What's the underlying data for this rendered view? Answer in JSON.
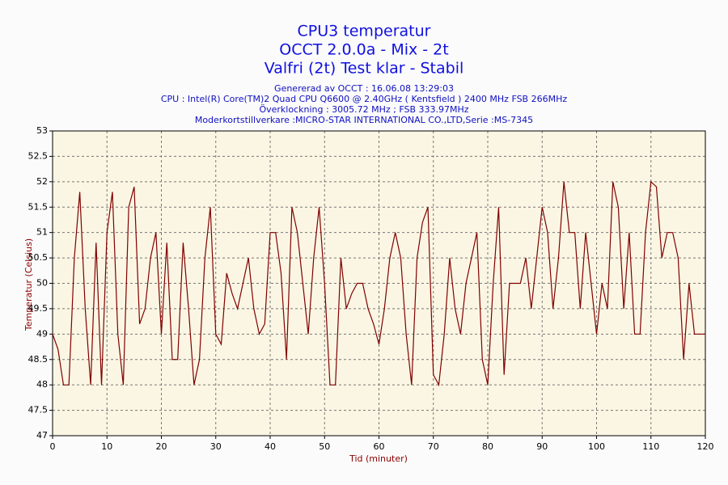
{
  "chart_data": {
    "type": "line",
    "title_lines": [
      "CPU3 temperatur",
      "OCCT 2.0.0a - Mix - 2t",
      "Valfri (2t) Test klar - Stabil"
    ],
    "info_lines": [
      "Genererad av OCCT : 16.06.08 13:29:03",
      "CPU : Intel(R) Core(TM)2 Quad CPU Q6600 @ 2.40GHz ( Kentsfield ) 2400 MHz FSB 266MHz",
      "Överklockning : 3005.72 MHz ; FSB 333.97MHz",
      "Moderkortstillverkare :MICRO-STAR INTERNATIONAL CO.,LTD,Serie :MS-7345"
    ],
    "xlabel": "Tid (minuter)",
    "ylabel": "Temperatur (Celsius)",
    "x": [
      0,
      1,
      2,
      3,
      4,
      5,
      6,
      7,
      8,
      9,
      10,
      11,
      12,
      13,
      14,
      15,
      16,
      17,
      18,
      19,
      20,
      21,
      22,
      23,
      24,
      25,
      26,
      27,
      28,
      29,
      30,
      31,
      32,
      33,
      34,
      35,
      36,
      37,
      38,
      39,
      40,
      41,
      42,
      43,
      44,
      45,
      46,
      47,
      48,
      49,
      50,
      51,
      52,
      53,
      54,
      55,
      56,
      57,
      58,
      59,
      60,
      61,
      62,
      63,
      64,
      65,
      66,
      67,
      68,
      69,
      70,
      71,
      72,
      73,
      74,
      75,
      76,
      77,
      78,
      79,
      80,
      81,
      82,
      83,
      84,
      85,
      86,
      87,
      88,
      89,
      90,
      91,
      92,
      93,
      94,
      95,
      96,
      97,
      98,
      99,
      100,
      101,
      102,
      103,
      104,
      105,
      106,
      107,
      108,
      109,
      110,
      111,
      112,
      113,
      114,
      115,
      116,
      117,
      118,
      119,
      120
    ],
    "series": [
      {
        "name": "CPU3",
        "color": "#800000",
        "values": [
          49,
          48.7,
          48,
          48,
          50.5,
          51.8,
          49.5,
          48,
          50.8,
          48,
          51,
          51.8,
          49,
          48,
          51.5,
          51.9,
          49.2,
          49.5,
          50.5,
          51,
          49,
          50.8,
          48.5,
          48.5,
          50.8,
          49.5,
          48,
          48.5,
          50.5,
          51.5,
          49,
          48.8,
          50.2,
          49.8,
          49.5,
          50,
          50.5,
          49.5,
          49,
          49.2,
          51,
          51,
          50.2,
          48.5,
          51.5,
          51,
          50,
          49,
          50.5,
          51.5,
          50,
          48,
          48,
          50.5,
          49.5,
          49.8,
          50,
          50,
          49.5,
          49.2,
          48.8,
          49.5,
          50.5,
          51,
          50.5,
          49,
          48,
          50.5,
          51.2,
          51.5,
          48.2,
          48,
          49,
          50.5,
          49.5,
          49,
          50,
          50.5,
          51,
          48.5,
          48,
          50,
          51.5,
          48.2,
          50,
          50,
          50,
          50.5,
          49.5,
          50.5,
          51.5,
          51,
          49.5,
          50.5,
          52,
          51,
          51,
          49.5,
          51,
          50,
          49,
          50,
          49.5,
          52,
          51.5,
          49.5,
          51,
          49,
          49,
          51,
          52,
          51.9,
          50.5,
          51,
          51,
          50.5,
          48.5,
          50,
          49,
          49,
          49
        ]
      }
    ],
    "xlim": [
      0,
      120
    ],
    "xticks": [
      0,
      10,
      20,
      30,
      40,
      50,
      60,
      70,
      80,
      90,
      100,
      110,
      120
    ],
    "ylim": [
      47,
      53
    ],
    "yticks": [
      47,
      47.5,
      48,
      48.5,
      49,
      49.5,
      50,
      50.5,
      51,
      51.5,
      52,
      52.5,
      53
    ],
    "grid": true
  }
}
